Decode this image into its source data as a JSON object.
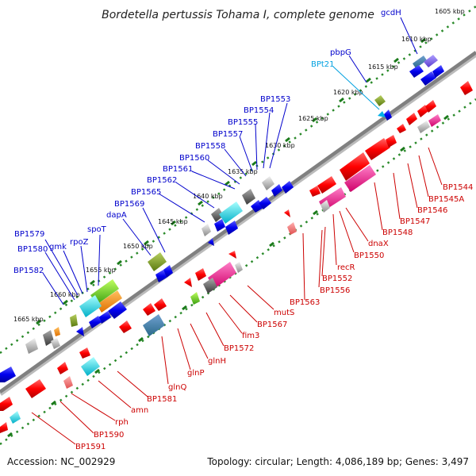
{
  "title": "Bordetella pertussis Tohama I, complete genome",
  "footer": {
    "accession": "Accession: NC_002929",
    "summary": "Topology: circular; Length: 4,086,189 bp; Genes: 3,497"
  },
  "colors": {
    "axis": "#808080",
    "ticks": "#2a8a2a",
    "upper_labels": "#0000cc",
    "lower_labels": "#cc0000",
    "highlight_label": "#00a0e0"
  },
  "position_ticks": [
    "1605 kbp",
    "1610 kbp",
    "1615 kbp",
    "1620 kbp",
    "1625 kbp",
    "1630 kbp",
    "1635 kbp",
    "1640 kbp",
    "1645 kbp",
    "1650 kbp",
    "1655 kbp",
    "1660 kbp",
    "1665 kbp"
  ],
  "upper_gene_labels": [
    "gcdH",
    "pbpG",
    "BPt21",
    "BP1553",
    "BP1554",
    "BP1555",
    "BP1557",
    "BP1558",
    "BP1560",
    "BP1561",
    "BP1562",
    "BP1565",
    "BP1569",
    "dapA",
    "spoT",
    "rpoZ",
    "gmk",
    "BP1579",
    "BP1580",
    "BP1582"
  ],
  "lower_gene_labels": [
    "BP1544",
    "BP1545A",
    "BP1546",
    "BP1547",
    "BP1548",
    "dnaX",
    "BP1550",
    "recR",
    "BP1552",
    "BP1556",
    "BP1563",
    "mutS",
    "BP1567",
    "fim3",
    "BP1572",
    "glnH",
    "glnP",
    "glnQ",
    "BP1581",
    "amn",
    "rph",
    "BP1590",
    "BP1591"
  ]
}
